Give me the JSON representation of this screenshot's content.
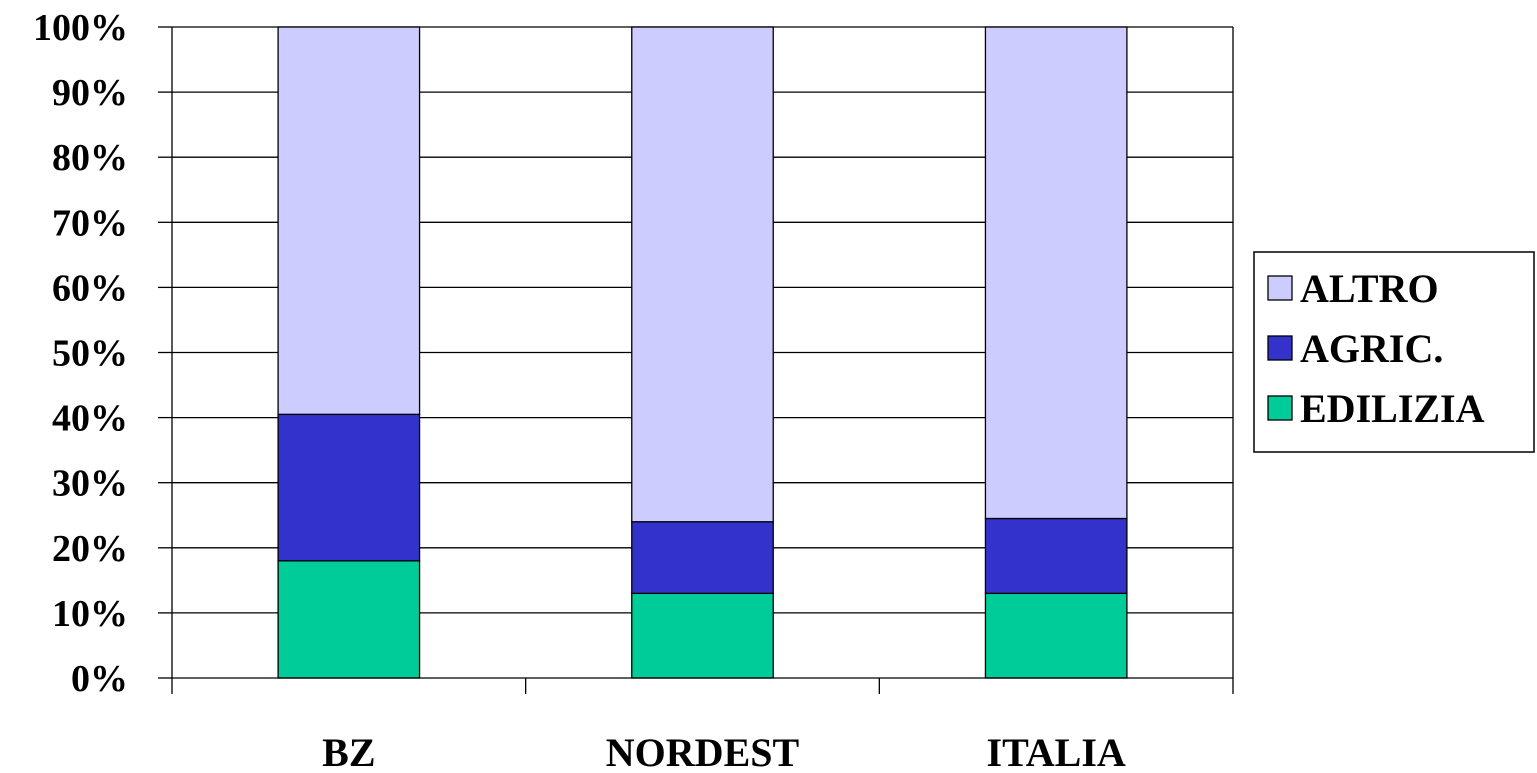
{
  "chart_data": {
    "type": "bar",
    "stacked": true,
    "percent_stacked": true,
    "categories": [
      "BZ",
      "NORDEST",
      "ITALIA"
    ],
    "series": [
      {
        "name": "EDILIZIA",
        "color": "#00cc99",
        "values": [
          18,
          13,
          13
        ]
      },
      {
        "name": "AGRIC.",
        "color": "#3333cc",
        "values": [
          22.5,
          11,
          11.5
        ]
      },
      {
        "name": "ALTRO",
        "color": "#ccccff",
        "values": [
          59.5,
          76,
          75.5
        ]
      }
    ],
    "legend_order": [
      "ALTRO",
      "AGRIC.",
      "EDILIZIA"
    ],
    "ylim": [
      0,
      100
    ],
    "yticks": [
      "0%",
      "10%",
      "20%",
      "30%",
      "40%",
      "50%",
      "60%",
      "70%",
      "80%",
      "90%",
      "100%"
    ],
    "grid": true,
    "legend_position": "right"
  }
}
